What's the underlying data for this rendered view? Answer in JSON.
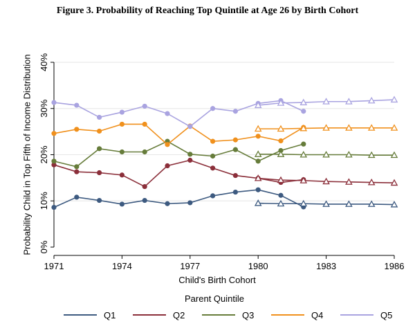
{
  "figure_title": "Figure 3. Probability of Reaching Top Quintile at Age 26 by Birth Cohort",
  "chart_data": {
    "type": "line",
    "title": "Figure 3. Probability of Reaching Top Quintile at Age 26 by Birth Cohort",
    "xlabel": "Child's Birth Cohort",
    "ylabel": "Probability Child in Top Fifth of Income Distribution",
    "xlim": [
      1971,
      1986
    ],
    "ylim": [
      0,
      0.4
    ],
    "x_ticks": [
      1971,
      1974,
      1977,
      1980,
      1983,
      1986
    ],
    "x_tick_labels": [
      "1971",
      "1974",
      "1977",
      "1980",
      "1983",
      "1986"
    ],
    "y_ticks": [
      0,
      0.1,
      0.2,
      0.3,
      0.4
    ],
    "y_tick_labels": [
      "0%",
      "10%",
      "20%",
      "30%",
      "40%"
    ],
    "grid": true,
    "legend_title": "Parent Quintile",
    "legend_position": "bottom",
    "series": [
      {
        "name": "Q1",
        "color": "#3d5a80",
        "marker": "circle",
        "x": [
          1971,
          1972,
          1973,
          1974,
          1975,
          1976,
          1977,
          1978,
          1979,
          1980,
          1981,
          1982
        ],
        "values": [
          0.086,
          0.108,
          0.101,
          0.093,
          0.101,
          0.094,
          0.096,
          0.111,
          0.119,
          0.124,
          0.112,
          0.087
        ]
      },
      {
        "name": "Q1",
        "color": "#3d5a80",
        "marker": "triangle",
        "legend": false,
        "x": [
          1980,
          1981,
          1982,
          1983,
          1984,
          1985,
          1986
        ],
        "values": [
          0.095,
          0.094,
          0.094,
          0.093,
          0.093,
          0.093,
          0.092
        ]
      },
      {
        "name": "Q2",
        "color": "#8b2f3a",
        "marker": "circle",
        "x": [
          1971,
          1972,
          1973,
          1974,
          1975,
          1976,
          1977,
          1978,
          1979,
          1980,
          1981,
          1982
        ],
        "values": [
          0.178,
          0.163,
          0.161,
          0.156,
          0.131,
          0.176,
          0.188,
          0.171,
          0.155,
          0.149,
          0.14,
          0.146
        ]
      },
      {
        "name": "Q2",
        "color": "#8b2f3a",
        "marker": "triangle",
        "legend": false,
        "x": [
          1980,
          1981,
          1982,
          1983,
          1984,
          1985,
          1986
        ],
        "values": [
          0.149,
          0.145,
          0.144,
          0.142,
          0.141,
          0.14,
          0.139
        ]
      },
      {
        "name": "Q3",
        "color": "#667c3a",
        "marker": "circle",
        "x": [
          1971,
          1972,
          1973,
          1974,
          1975,
          1976,
          1977,
          1978,
          1979,
          1980,
          1981,
          1982
        ],
        "values": [
          0.186,
          0.174,
          0.213,
          0.206,
          0.206,
          0.229,
          0.201,
          0.197,
          0.211,
          0.186,
          0.209,
          0.223
        ]
      },
      {
        "name": "Q3",
        "color": "#667c3a",
        "marker": "triangle",
        "legend": false,
        "x": [
          1980,
          1981,
          1982,
          1983,
          1984,
          1985,
          1986
        ],
        "values": [
          0.201,
          0.201,
          0.2,
          0.2,
          0.2,
          0.199,
          0.199
        ]
      },
      {
        "name": "Q4",
        "color": "#f0901c",
        "marker": "circle",
        "x": [
          1971,
          1972,
          1973,
          1974,
          1975,
          1976,
          1977,
          1978,
          1979,
          1980,
          1981,
          1982
        ],
        "values": [
          0.246,
          0.255,
          0.251,
          0.266,
          0.266,
          0.222,
          0.262,
          0.229,
          0.232,
          0.24,
          0.23,
          0.259
        ]
      },
      {
        "name": "Q4",
        "color": "#f0901c",
        "marker": "triangle",
        "legend": false,
        "x": [
          1980,
          1981,
          1982,
          1983,
          1984,
          1985,
          1986
        ],
        "values": [
          0.256,
          0.256,
          0.257,
          0.258,
          0.258,
          0.258,
          0.258
        ]
      },
      {
        "name": "Q5",
        "color": "#a9a3e0",
        "marker": "circle",
        "x": [
          1971,
          1972,
          1973,
          1974,
          1975,
          1976,
          1977,
          1978,
          1979,
          1980,
          1981,
          1982
        ],
        "values": [
          0.313,
          0.307,
          0.281,
          0.292,
          0.305,
          0.289,
          0.261,
          0.3,
          0.294,
          0.311,
          0.317,
          0.294
        ]
      },
      {
        "name": "Q5",
        "color": "#a9a3e0",
        "marker": "triangle",
        "legend": false,
        "x": [
          1980,
          1981,
          1982,
          1983,
          1984,
          1985,
          1986
        ],
        "values": [
          0.307,
          0.312,
          0.313,
          0.315,
          0.315,
          0.317,
          0.319
        ]
      }
    ]
  }
}
